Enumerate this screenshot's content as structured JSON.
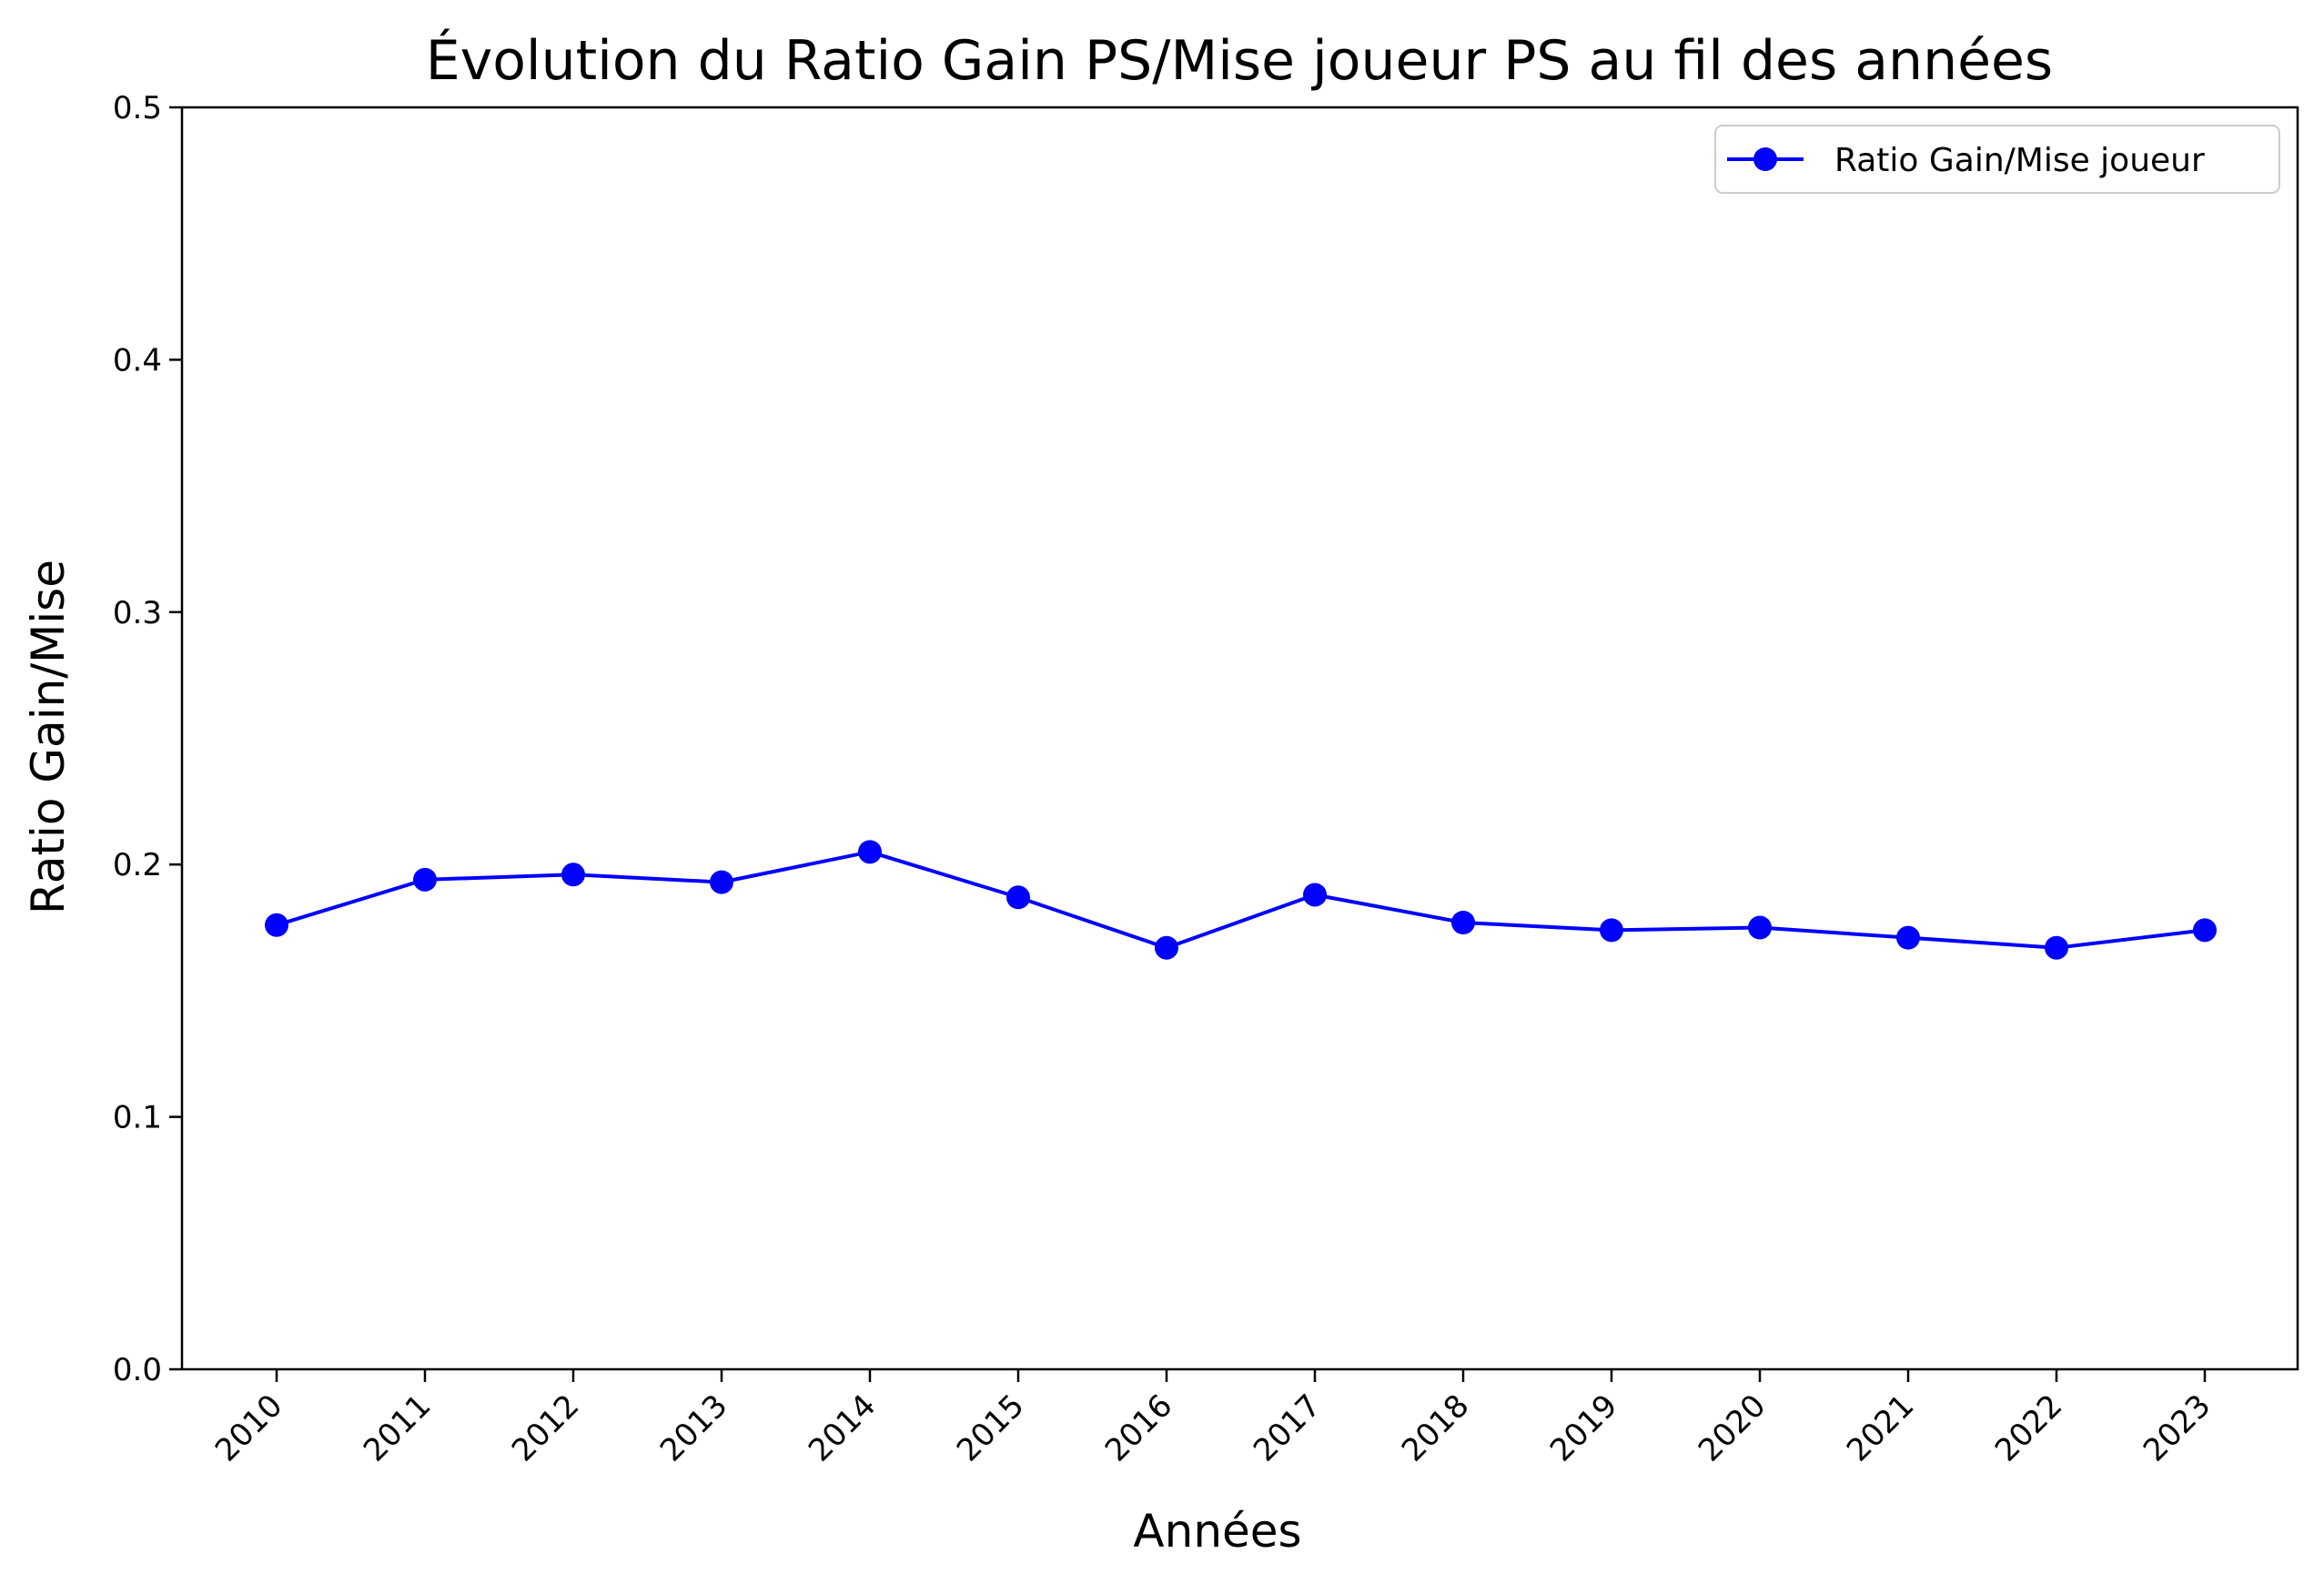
{
  "chart_data": {
    "type": "line",
    "title": "Évolution du Ratio Gain PS/Mise joueur PS au fil des années",
    "xlabel": "Années",
    "ylabel": "Ratio Gain/Mise",
    "categories": [
      "2010",
      "2011",
      "2012",
      "2013",
      "2014",
      "2015",
      "2016",
      "2017",
      "2018",
      "2019",
      "2020",
      "2021",
      "2022",
      "2023"
    ],
    "series": [
      {
        "name": "Ratio Gain/Mise joueur",
        "color": "#0000ff",
        "marker": "circle",
        "values": [
          0.176,
          0.194,
          0.196,
          0.193,
          0.205,
          0.187,
          0.167,
          0.188,
          0.177,
          0.174,
          0.175,
          0.171,
          0.167,
          0.174
        ]
      }
    ],
    "ylim": [
      0.0,
      0.5
    ],
    "yticks": [
      "0.0",
      "0.1",
      "0.2",
      "0.3",
      "0.4",
      "0.5"
    ],
    "grid": false,
    "legend_position": "top-right"
  }
}
